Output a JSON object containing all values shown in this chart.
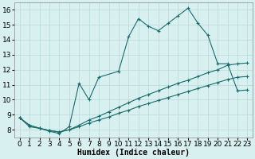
{
  "line1_x": [
    0,
    1,
    2,
    3,
    4,
    5,
    6,
    7,
    8,
    10,
    11,
    12,
    13,
    14,
    15,
    16,
    17,
    18,
    19,
    20,
    21,
    22,
    23
  ],
  "line1_y": [
    8.8,
    8.2,
    8.1,
    7.9,
    7.75,
    8.2,
    11.1,
    10.0,
    11.5,
    11.9,
    14.2,
    15.4,
    14.9,
    14.6,
    15.1,
    15.6,
    16.1,
    15.1,
    14.3,
    12.4,
    12.4,
    10.6,
    10.65
  ],
  "line2_x": [
    0,
    1,
    2,
    3,
    4,
    5,
    6,
    7,
    8,
    9,
    10,
    11,
    12,
    13,
    14,
    15,
    16,
    17,
    18,
    19,
    20,
    21,
    22,
    23
  ],
  "line2_y": [
    8.8,
    8.3,
    8.1,
    7.95,
    7.85,
    8.0,
    8.3,
    8.65,
    8.9,
    9.2,
    9.5,
    9.8,
    10.1,
    10.35,
    10.6,
    10.85,
    11.1,
    11.3,
    11.55,
    11.8,
    12.0,
    12.3,
    12.4,
    12.45
  ],
  "line3_x": [
    0,
    1,
    2,
    3,
    4,
    5,
    6,
    7,
    8,
    9,
    10,
    11,
    12,
    13,
    14,
    15,
    16,
    17,
    18,
    19,
    20,
    21,
    22,
    23
  ],
  "line3_y": [
    8.8,
    8.3,
    8.1,
    7.95,
    7.85,
    8.0,
    8.2,
    8.45,
    8.65,
    8.85,
    9.1,
    9.3,
    9.55,
    9.75,
    9.95,
    10.15,
    10.35,
    10.55,
    10.75,
    10.95,
    11.15,
    11.35,
    11.5,
    11.55
  ],
  "line_color": "#1a6b6b",
  "bg_color": "#d9f0f0",
  "grid_color": "#b8d8d8",
  "xlabel": "Humidex (Indice chaleur)",
  "ylim": [
    7.5,
    16.5
  ],
  "xlim": [
    -0.5,
    23.5
  ],
  "yticks": [
    8,
    9,
    10,
    11,
    12,
    13,
    14,
    15,
    16
  ],
  "xticks": [
    0,
    1,
    2,
    3,
    4,
    5,
    6,
    7,
    8,
    9,
    10,
    11,
    12,
    13,
    14,
    15,
    16,
    17,
    18,
    19,
    20,
    21,
    22,
    23
  ],
  "xlabel_fontsize": 7,
  "tick_fontsize": 6.5
}
